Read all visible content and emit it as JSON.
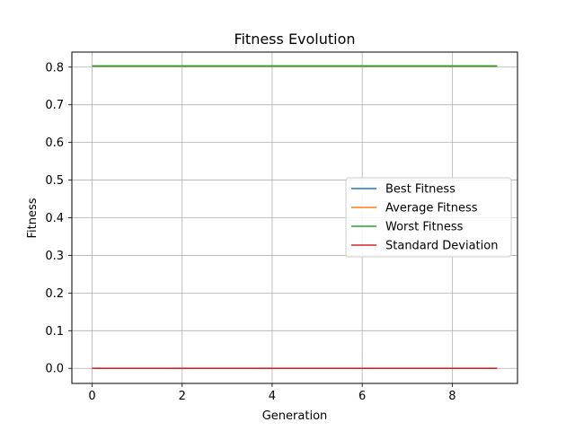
{
  "chart_data": {
    "type": "line",
    "title": "Fitness Evolution",
    "xlabel": "Generation",
    "ylabel": "Fitness",
    "xlim": [
      -0.45,
      9.45
    ],
    "ylim": [
      -0.04,
      0.84
    ],
    "xticks": [
      0,
      2,
      4,
      6,
      8
    ],
    "yticks": [
      0.0,
      0.1,
      0.2,
      0.3,
      0.4,
      0.5,
      0.6,
      0.7,
      0.8
    ],
    "ytick_labels": [
      "0.0",
      "0.1",
      "0.2",
      "0.3",
      "0.4",
      "0.5",
      "0.6",
      "0.7",
      "0.8"
    ],
    "grid": true,
    "legend_position": "center-right",
    "x": [
      0,
      1,
      2,
      3,
      4,
      5,
      6,
      7,
      8,
      9
    ],
    "series": [
      {
        "name": "Best Fitness",
        "color": "#1f77b4",
        "values": [
          0.803,
          0.803,
          0.803,
          0.803,
          0.803,
          0.803,
          0.803,
          0.803,
          0.803,
          0.803
        ]
      },
      {
        "name": "Average Fitness",
        "color": "#ff7f0e",
        "values": [
          0.803,
          0.803,
          0.803,
          0.803,
          0.803,
          0.803,
          0.803,
          0.803,
          0.803,
          0.803
        ]
      },
      {
        "name": "Worst Fitness",
        "color": "#2ca02c",
        "values": [
          0.803,
          0.803,
          0.803,
          0.803,
          0.803,
          0.803,
          0.803,
          0.803,
          0.803,
          0.803
        ]
      },
      {
        "name": "Standard Deviation",
        "color": "#d62728",
        "values": [
          0,
          0,
          0,
          0,
          0,
          0,
          0,
          0,
          0,
          0
        ]
      }
    ]
  }
}
